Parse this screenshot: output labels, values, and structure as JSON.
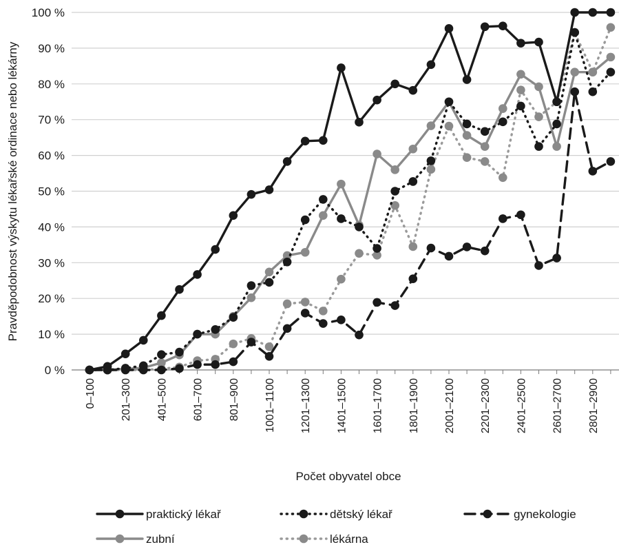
{
  "chart_data": {
    "type": "line",
    "title": "",
    "xlabel": "Počet obyvatel obce",
    "ylabel": "Pravděpodobnost výskytu lékařské ordinace nebo lékárny",
    "ylim": [
      0,
      100
    ],
    "yticks": [
      0,
      10,
      20,
      30,
      40,
      50,
      60,
      70,
      80,
      90,
      100
    ],
    "ytick_labels": [
      "0 %",
      "10 %",
      "20 %",
      "30 %",
      "40 %",
      "50 %",
      "60 %",
      "70 %",
      "80 %",
      "90 %",
      "100 %"
    ],
    "grid": "horizontal",
    "legend_position": "bottom",
    "categories": [
      "0–100",
      "101–200",
      "201–300",
      "301–400",
      "401–500",
      "501–600",
      "601–700",
      "701–800",
      "801–900",
      "901–1000",
      "1001–1100",
      "1101–1200",
      "1201–1300",
      "1301–1400",
      "1401–1500",
      "1501–1600",
      "1601–1700",
      "1701–1800",
      "1801–1900",
      "1901–2000",
      "2001–2100",
      "2101–2200",
      "2201–2300",
      "2301–2400",
      "2401–2500",
      "2501–2600",
      "2601–2700",
      "2701–2800",
      "2801–2900",
      "2901–3000"
    ],
    "shown_category_labels": [
      "0–100",
      "201–300",
      "401–500",
      "601–700",
      "801–900",
      "1001–1100",
      "1201–1300",
      "1401–1500",
      "1601–1700",
      "1801–1900",
      "2001–2100",
      "2201–2300",
      "2401–2500",
      "2601–2700",
      "2801–2900"
    ],
    "series": [
      {
        "name": "praktický lékař",
        "color": "#1a1a1a",
        "marker_color": "#1a1a1a",
        "line_style": "solid",
        "values": [
          0,
          1,
          4.5,
          8.3,
          15.2,
          22.5,
          26.7,
          33.7,
          43.2,
          49.1,
          50.4,
          58.3,
          64.0,
          64.2,
          84.5,
          69.3,
          75.5,
          80.0,
          78.2,
          85.4,
          95.5,
          81.2,
          96.0,
          96.2,
          91.4,
          91.7,
          75.0,
          100,
          100,
          100
        ]
      },
      {
        "name": "dětský lékař",
        "color": "#1a1a1a",
        "marker_color": "#1a1a1a",
        "line_style": "dotted",
        "values": [
          0,
          0,
          0.5,
          1.2,
          4.3,
          5.0,
          10.0,
          11.3,
          14.7,
          23.6,
          24.5,
          30.2,
          42.0,
          47.7,
          42.3,
          40.0,
          34.0,
          50.0,
          52.7,
          58.5,
          75.0,
          68.8,
          66.7,
          69.4,
          73.8,
          62.5,
          68.8,
          94.4,
          77.8,
          83.3
        ]
      },
      {
        "name": "gynekologie",
        "color": "#1a1a1a",
        "marker_color": "#1a1a1a",
        "line_style": "dashed",
        "values": [
          0,
          0,
          0,
          0,
          0,
          0.4,
          1.5,
          1.5,
          2.3,
          7.8,
          3.8,
          11.6,
          15.9,
          13.0,
          14.0,
          9.8,
          18.9,
          18.0,
          25.5,
          34.1,
          31.8,
          34.4,
          33.3,
          42.3,
          43.4,
          29.2,
          31.3,
          77.8,
          55.6,
          58.3
        ]
      },
      {
        "name": "zubní",
        "color": "#8a8a8a",
        "marker_color": "#8a8a8a",
        "line_style": "solid",
        "values": [
          0,
          0,
          0.3,
          0.6,
          2.0,
          4.2,
          10.0,
          10.0,
          15.0,
          20.2,
          27.4,
          32.0,
          32.9,
          43.2,
          52.0,
          40.5,
          60.4,
          56.0,
          61.8,
          68.3,
          75.0,
          65.6,
          62.5,
          73.1,
          82.7,
          79.2,
          62.5,
          83.3,
          83.3,
          87.5
        ]
      },
      {
        "name": "lékárna",
        "color": "#9a9a9a",
        "marker_color": "#8a8a8a",
        "line_style": "dotted",
        "values": [
          0,
          0,
          0,
          0,
          0.3,
          0.8,
          2.6,
          3.0,
          7.3,
          8.8,
          6.5,
          18.5,
          19.0,
          16.5,
          25.4,
          32.6,
          32.1,
          46.0,
          34.5,
          56.1,
          68.2,
          59.4,
          58.3,
          53.8,
          78.3,
          70.8,
          75.0,
          94.4,
          83.3,
          95.8
        ]
      }
    ]
  }
}
